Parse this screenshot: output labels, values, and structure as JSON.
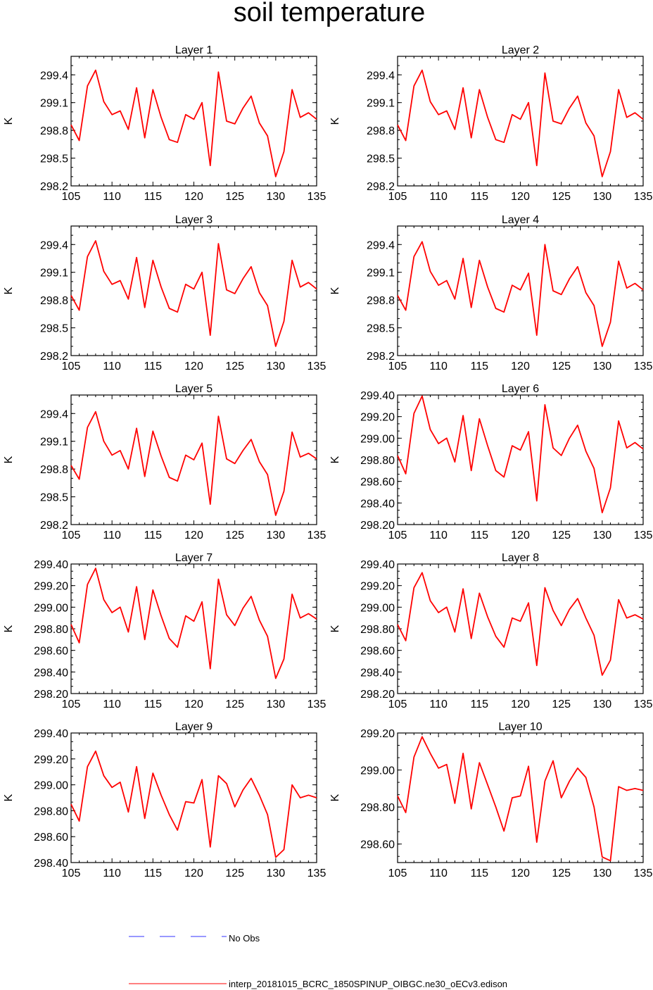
{
  "figure": {
    "title": "soil temperature",
    "legend": [
      {
        "label": "No Obs",
        "color": "#3333ff",
        "dash": true
      },
      {
        "label": "interp_20181015_BCRC_1850SPINUP_OIBGC.ne30_oECv3.edison",
        "color": "#ff0000",
        "dash": false
      }
    ]
  },
  "chart_data": [
    {
      "type": "line",
      "title": "Layer 1",
      "xlabel": "",
      "ylabel": "K",
      "xlim": [
        105,
        135
      ],
      "ylim": [
        298.2,
        299.6
      ],
      "xticks": [
        "105",
        "110",
        "115",
        "120",
        "125",
        "130",
        "135"
      ],
      "yticks": [
        "298.2",
        "298.5",
        "298.8",
        "299.1",
        "299.4"
      ],
      "x": [
        105,
        106,
        107,
        108,
        109,
        110,
        111,
        112,
        113,
        114,
        115,
        116,
        117,
        118,
        119,
        120,
        121,
        122,
        123,
        124,
        125,
        126,
        127,
        128,
        129,
        130,
        131,
        132,
        133,
        134,
        135
      ],
      "series": [
        {
          "values": [
            298.86,
            298.69,
            299.28,
            299.45,
            299.11,
            298.97,
            299.01,
            298.81,
            299.26,
            298.72,
            299.24,
            298.94,
            298.7,
            298.67,
            298.97,
            298.92,
            299.1,
            298.42,
            299.43,
            298.9,
            298.87,
            299.04,
            299.17,
            298.88,
            298.74,
            298.3,
            298.57,
            299.24,
            298.94,
            298.99,
            298.92
          ]
        }
      ]
    },
    {
      "type": "line",
      "title": "Layer 2",
      "xlabel": "",
      "ylabel": "K",
      "xlim": [
        105,
        135
      ],
      "ylim": [
        298.2,
        299.6
      ],
      "xticks": [
        "105",
        "110",
        "115",
        "120",
        "125",
        "130",
        "135"
      ],
      "yticks": [
        "298.2",
        "298.5",
        "298.8",
        "299.1",
        "299.4"
      ],
      "x": [
        105,
        106,
        107,
        108,
        109,
        110,
        111,
        112,
        113,
        114,
        115,
        116,
        117,
        118,
        119,
        120,
        121,
        122,
        123,
        124,
        125,
        126,
        127,
        128,
        129,
        130,
        131,
        132,
        133,
        134,
        135
      ],
      "series": [
        {
          "values": [
            298.86,
            298.69,
            299.28,
            299.45,
            299.11,
            298.97,
            299.01,
            298.81,
            299.26,
            298.72,
            299.24,
            298.94,
            298.7,
            298.67,
            298.97,
            298.92,
            299.1,
            298.42,
            299.42,
            298.9,
            298.87,
            299.04,
            299.17,
            298.88,
            298.74,
            298.3,
            298.57,
            299.24,
            298.94,
            298.99,
            298.92
          ]
        }
      ]
    },
    {
      "type": "line",
      "title": "Layer 3",
      "xlabel": "",
      "ylabel": "K",
      "xlim": [
        105,
        135
      ],
      "ylim": [
        298.2,
        299.6
      ],
      "xticks": [
        "105",
        "110",
        "115",
        "120",
        "125",
        "130",
        "135"
      ],
      "yticks": [
        "298.2",
        "298.5",
        "298.8",
        "299.1",
        "299.4"
      ],
      "x": [
        105,
        106,
        107,
        108,
        109,
        110,
        111,
        112,
        113,
        114,
        115,
        116,
        117,
        118,
        119,
        120,
        121,
        122,
        123,
        124,
        125,
        126,
        127,
        128,
        129,
        130,
        131,
        132,
        133,
        134,
        135
      ],
      "series": [
        {
          "values": [
            298.85,
            298.69,
            299.27,
            299.44,
            299.11,
            298.97,
            299.01,
            298.81,
            299.26,
            298.72,
            299.23,
            298.94,
            298.71,
            298.67,
            298.97,
            298.92,
            299.1,
            298.42,
            299.41,
            298.91,
            298.87,
            299.03,
            299.16,
            298.88,
            298.74,
            298.3,
            298.57,
            299.23,
            298.94,
            298.99,
            298.92
          ]
        }
      ]
    },
    {
      "type": "line",
      "title": "Layer 4",
      "xlabel": "",
      "ylabel": "K",
      "xlim": [
        105,
        135
      ],
      "ylim": [
        298.2,
        299.6
      ],
      "xticks": [
        "105",
        "110",
        "115",
        "120",
        "125",
        "130",
        "135"
      ],
      "yticks": [
        "298.2",
        "298.5",
        "298.8",
        "299.1",
        "299.4"
      ],
      "x": [
        105,
        106,
        107,
        108,
        109,
        110,
        111,
        112,
        113,
        114,
        115,
        116,
        117,
        118,
        119,
        120,
        121,
        122,
        123,
        124,
        125,
        126,
        127,
        128,
        129,
        130,
        131,
        132,
        133,
        134,
        135
      ],
      "series": [
        {
          "values": [
            298.85,
            298.69,
            299.27,
            299.43,
            299.11,
            298.96,
            299.01,
            298.81,
            299.25,
            298.72,
            299.23,
            298.94,
            298.71,
            298.67,
            298.96,
            298.91,
            299.09,
            298.42,
            299.4,
            298.9,
            298.86,
            299.03,
            299.16,
            298.88,
            298.74,
            298.3,
            298.56,
            299.22,
            298.93,
            298.98,
            298.91
          ]
        }
      ]
    },
    {
      "type": "line",
      "title": "Layer 5",
      "xlabel": "",
      "ylabel": "K",
      "xlim": [
        105,
        135
      ],
      "ylim": [
        298.2,
        299.6
      ],
      "xticks": [
        "105",
        "110",
        "115",
        "120",
        "125",
        "130",
        "135"
      ],
      "yticks": [
        "298.2",
        "298.5",
        "298.8",
        "299.1",
        "299.4"
      ],
      "x": [
        105,
        106,
        107,
        108,
        109,
        110,
        111,
        112,
        113,
        114,
        115,
        116,
        117,
        118,
        119,
        120,
        121,
        122,
        123,
        124,
        125,
        126,
        127,
        128,
        129,
        130,
        131,
        132,
        133,
        134,
        135
      ],
      "series": [
        {
          "values": [
            298.84,
            298.69,
            299.25,
            299.42,
            299.1,
            298.95,
            299.0,
            298.8,
            299.24,
            298.72,
            299.21,
            298.94,
            298.71,
            298.67,
            298.95,
            298.9,
            299.08,
            298.42,
            299.37,
            298.91,
            298.86,
            299.0,
            299.12,
            298.88,
            298.74,
            298.3,
            298.56,
            299.2,
            298.93,
            298.97,
            298.91
          ]
        }
      ]
    },
    {
      "type": "line",
      "title": "Layer 6",
      "xlabel": "",
      "ylabel": "K",
      "xlim": [
        105,
        135
      ],
      "ylim": [
        298.2,
        299.4
      ],
      "xticks": [
        "105",
        "110",
        "115",
        "120",
        "125",
        "130",
        "135"
      ],
      "yticks": [
        "298.20",
        "298.40",
        "298.60",
        "298.80",
        "299.00",
        "299.20",
        "299.40"
      ],
      "x": [
        105,
        106,
        107,
        108,
        109,
        110,
        111,
        112,
        113,
        114,
        115,
        116,
        117,
        118,
        119,
        120,
        121,
        122,
        123,
        124,
        125,
        126,
        127,
        128,
        129,
        130,
        131,
        132,
        133,
        134,
        135
      ],
      "series": [
        {
          "values": [
            298.84,
            298.67,
            299.23,
            299.39,
            299.08,
            298.95,
            299.0,
            298.78,
            299.21,
            298.7,
            299.18,
            298.93,
            298.7,
            298.64,
            298.93,
            298.89,
            299.06,
            298.42,
            299.31,
            298.91,
            298.84,
            299.0,
            299.12,
            298.88,
            298.72,
            298.31,
            298.54,
            299.16,
            298.91,
            298.96,
            298.9
          ]
        }
      ]
    },
    {
      "type": "line",
      "title": "Layer 7",
      "xlabel": "",
      "ylabel": "K",
      "xlim": [
        105,
        135
      ],
      "ylim": [
        298.2,
        299.4
      ],
      "xticks": [
        "105",
        "110",
        "115",
        "120",
        "125",
        "130",
        "135"
      ],
      "yticks": [
        "298.20",
        "298.40",
        "298.60",
        "298.80",
        "299.00",
        "299.20",
        "299.40"
      ],
      "x": [
        105,
        106,
        107,
        108,
        109,
        110,
        111,
        112,
        113,
        114,
        115,
        116,
        117,
        118,
        119,
        120,
        121,
        122,
        123,
        124,
        125,
        126,
        127,
        128,
        129,
        130,
        131,
        132,
        133,
        134,
        135
      ],
      "series": [
        {
          "values": [
            298.84,
            298.67,
            299.21,
            299.36,
            299.07,
            298.95,
            299.0,
            298.77,
            299.19,
            298.7,
            299.16,
            298.92,
            298.71,
            298.63,
            298.92,
            298.87,
            299.05,
            298.43,
            299.26,
            298.93,
            298.83,
            298.99,
            299.1,
            298.88,
            298.73,
            298.34,
            298.52,
            299.12,
            298.9,
            298.94,
            298.89
          ]
        }
      ]
    },
    {
      "type": "line",
      "title": "Layer 8",
      "xlabel": "",
      "ylabel": "K",
      "xlim": [
        105,
        135
      ],
      "ylim": [
        298.2,
        299.4
      ],
      "xticks": [
        "105",
        "110",
        "115",
        "120",
        "125",
        "130",
        "135"
      ],
      "yticks": [
        "298.20",
        "298.40",
        "298.60",
        "298.80",
        "299.00",
        "299.20",
        "299.40"
      ],
      "x": [
        105,
        106,
        107,
        108,
        109,
        110,
        111,
        112,
        113,
        114,
        115,
        116,
        117,
        118,
        119,
        120,
        121,
        122,
        123,
        124,
        125,
        126,
        127,
        128,
        129,
        130,
        131,
        132,
        133,
        134,
        135
      ],
      "series": [
        {
          "values": [
            298.84,
            298.69,
            299.18,
            299.32,
            299.06,
            298.95,
            299.0,
            298.77,
            299.17,
            298.71,
            299.13,
            298.91,
            298.73,
            298.63,
            298.9,
            298.87,
            299.04,
            298.46,
            299.18,
            298.97,
            298.83,
            298.98,
            299.08,
            298.9,
            298.74,
            298.37,
            298.51,
            299.07,
            298.9,
            298.93,
            298.89
          ]
        }
      ]
    },
    {
      "type": "line",
      "title": "Layer 9",
      "xlabel": "",
      "ylabel": "K",
      "xlim": [
        105,
        135
      ],
      "ylim": [
        298.4,
        299.4
      ],
      "xticks": [
        "105",
        "110",
        "115",
        "120",
        "125",
        "130",
        "135"
      ],
      "yticks": [
        "298.40",
        "298.60",
        "298.80",
        "299.00",
        "299.20",
        "299.40"
      ],
      "x": [
        105,
        106,
        107,
        108,
        109,
        110,
        111,
        112,
        113,
        114,
        115,
        116,
        117,
        118,
        119,
        120,
        121,
        122,
        123,
        124,
        125,
        126,
        127,
        128,
        129,
        130,
        131,
        132,
        133,
        134,
        135
      ],
      "series": [
        {
          "values": [
            298.85,
            298.72,
            299.14,
            299.26,
            299.07,
            298.98,
            299.02,
            298.79,
            299.14,
            298.74,
            299.09,
            298.92,
            298.77,
            298.65,
            298.87,
            298.86,
            299.04,
            298.52,
            299.07,
            299.01,
            298.83,
            298.96,
            299.05,
            298.92,
            298.77,
            298.44,
            298.5,
            299.0,
            298.9,
            298.92,
            298.9
          ]
        }
      ]
    },
    {
      "type": "line",
      "title": "Layer 10",
      "xlabel": "",
      "ylabel": "K",
      "xlim": [
        105,
        135
      ],
      "ylim": [
        298.5,
        299.2
      ],
      "xticks": [
        "105",
        "110",
        "115",
        "120",
        "125",
        "130",
        "135"
      ],
      "yticks": [
        "298.60",
        "298.80",
        "299.00",
        "299.20"
      ],
      "x": [
        105,
        106,
        107,
        108,
        109,
        110,
        111,
        112,
        113,
        114,
        115,
        116,
        117,
        118,
        119,
        120,
        121,
        122,
        123,
        124,
        125,
        126,
        127,
        128,
        129,
        130,
        131,
        132,
        133,
        134,
        135
      ],
      "series": [
        {
          "values": [
            298.86,
            298.77,
            299.07,
            299.18,
            299.09,
            299.01,
            299.03,
            298.82,
            299.09,
            298.79,
            299.04,
            298.92,
            298.8,
            298.67,
            298.85,
            298.86,
            299.02,
            298.61,
            298.94,
            299.05,
            298.85,
            298.94,
            299.01,
            298.96,
            298.8,
            298.53,
            298.51,
            298.91,
            298.89,
            298.9,
            298.89
          ]
        }
      ]
    }
  ]
}
